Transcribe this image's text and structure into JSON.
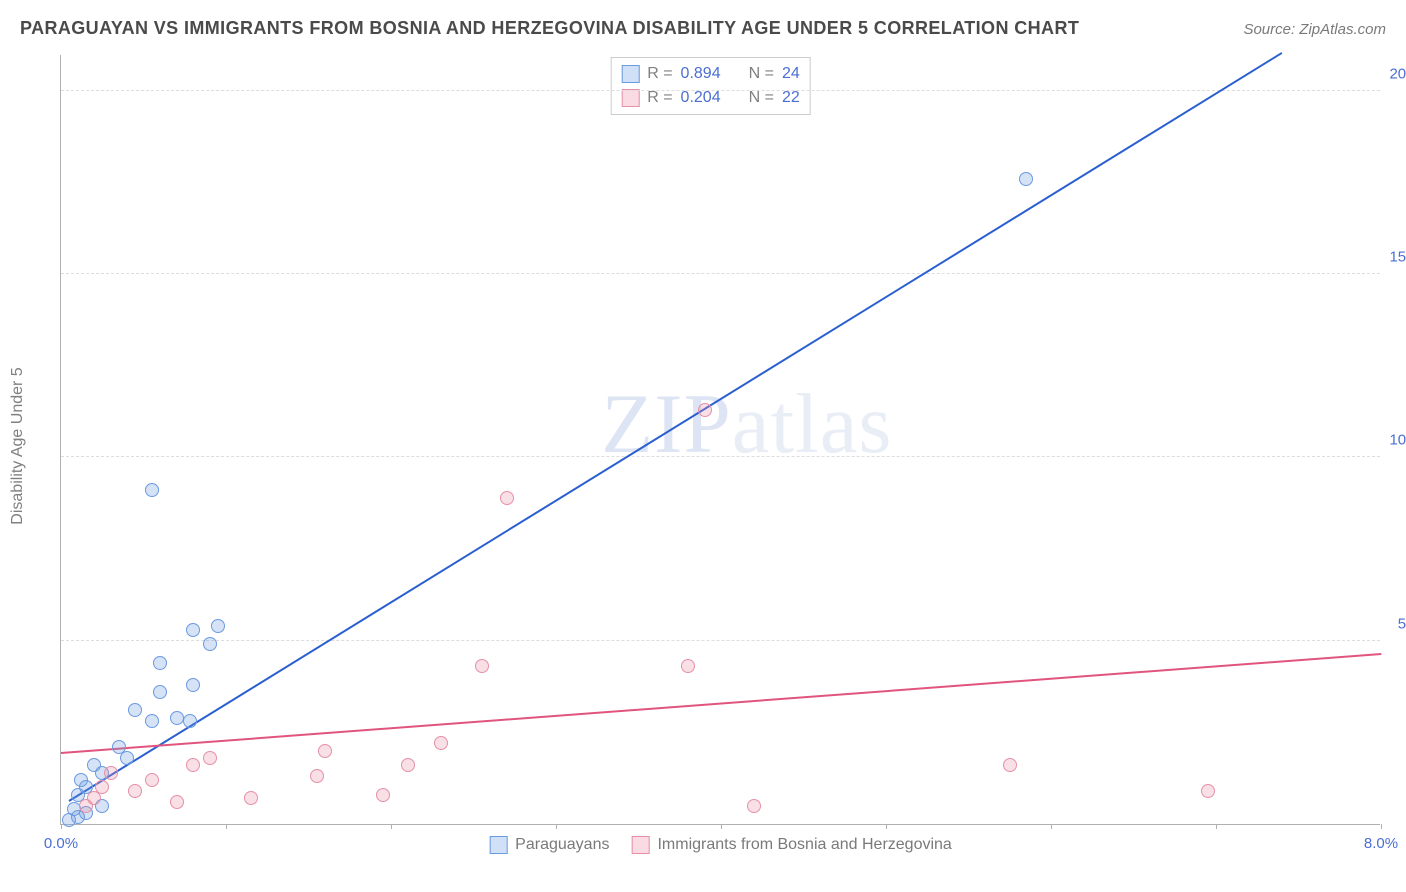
{
  "title": "PARAGUAYAN VS IMMIGRANTS FROM BOSNIA AND HERZEGOVINA DISABILITY AGE UNDER 5 CORRELATION CHART",
  "source": "Source: ZipAtlas.com",
  "y_axis_label": "Disability Age Under 5",
  "watermark_a": "ZIP",
  "watermark_b": "atlas",
  "chart": {
    "type": "scatter",
    "background_color": "#ffffff",
    "grid_color": "#dddddd",
    "axis_color": "#b0b0b0",
    "tick_color": "#4a6fd4",
    "xlim": [
      0,
      8
    ],
    "ylim": [
      0,
      21
    ],
    "x_ticks": [
      0.0,
      1.0,
      2.0,
      3.0,
      4.0,
      5.0,
      6.0,
      7.0,
      8.0
    ],
    "x_tick_labels": [
      "0.0%",
      "",
      "",
      "",
      "",
      "",
      "",
      "",
      "8.0%"
    ],
    "y_ticks": [
      5.0,
      10.0,
      15.0,
      20.0
    ],
    "y_tick_labels": [
      "5.0%",
      "10.0%",
      "15.0%",
      "20.0%"
    ],
    "marker_radius": 7,
    "marker_border": 1,
    "marker_fill_opacity": 0.28,
    "line_width": 2
  },
  "series": [
    {
      "name": "Paraguayans",
      "color": "#6a9ae0",
      "line_color": "#2a5fd0",
      "swatch_fill": "#cfe0f7",
      "swatch_border": "#6a9ae0",
      "R_label": "R =",
      "R": "0.894",
      "N_label": "N =",
      "N": "24",
      "trend": {
        "x1": 0.05,
        "y1": 0.6,
        "x2": 7.4,
        "y2": 21.0
      },
      "points": [
        [
          0.05,
          0.1
        ],
        [
          0.08,
          0.4
        ],
        [
          0.1,
          0.2
        ],
        [
          0.1,
          0.8
        ],
        [
          0.12,
          1.2
        ],
        [
          0.15,
          0.3
        ],
        [
          0.15,
          1.0
        ],
        [
          0.2,
          1.6
        ],
        [
          0.25,
          1.4
        ],
        [
          0.25,
          0.5
        ],
        [
          0.35,
          2.1
        ],
        [
          0.4,
          1.8
        ],
        [
          0.45,
          3.1
        ],
        [
          0.55,
          2.8
        ],
        [
          0.55,
          9.1
        ],
        [
          0.6,
          3.6
        ],
        [
          0.6,
          4.4
        ],
        [
          0.7,
          2.9
        ],
        [
          0.78,
          2.8
        ],
        [
          0.8,
          5.3
        ],
        [
          0.8,
          3.8
        ],
        [
          0.9,
          4.9
        ],
        [
          0.95,
          5.4
        ],
        [
          5.85,
          17.6
        ]
      ]
    },
    {
      "name": "Immigrants from Bosnia and Herzegovina",
      "color": "#e690a7",
      "line_color": "#e0547d",
      "swatch_fill": "#fadbe3",
      "swatch_border": "#e690a7",
      "R_label": "R =",
      "R": "0.204",
      "N_label": "N =",
      "N": "22",
      "trend": {
        "x1": 0.0,
        "y1": 1.9,
        "x2": 8.0,
        "y2": 4.6
      },
      "points": [
        [
          0.15,
          0.5
        ],
        [
          0.2,
          0.7
        ],
        [
          0.25,
          1.0
        ],
        [
          0.3,
          1.4
        ],
        [
          0.45,
          0.9
        ],
        [
          0.55,
          1.2
        ],
        [
          0.7,
          0.6
        ],
        [
          0.8,
          1.6
        ],
        [
          0.9,
          1.8
        ],
        [
          1.15,
          0.7
        ],
        [
          1.55,
          1.3
        ],
        [
          1.6,
          2.0
        ],
        [
          1.95,
          0.8
        ],
        [
          2.1,
          1.6
        ],
        [
          2.3,
          2.2
        ],
        [
          2.55,
          4.3
        ],
        [
          2.7,
          8.9
        ],
        [
          3.8,
          4.3
        ],
        [
          3.9,
          11.3
        ],
        [
          4.2,
          0.5
        ],
        [
          5.75,
          1.6
        ],
        [
          6.95,
          0.9
        ]
      ]
    }
  ]
}
